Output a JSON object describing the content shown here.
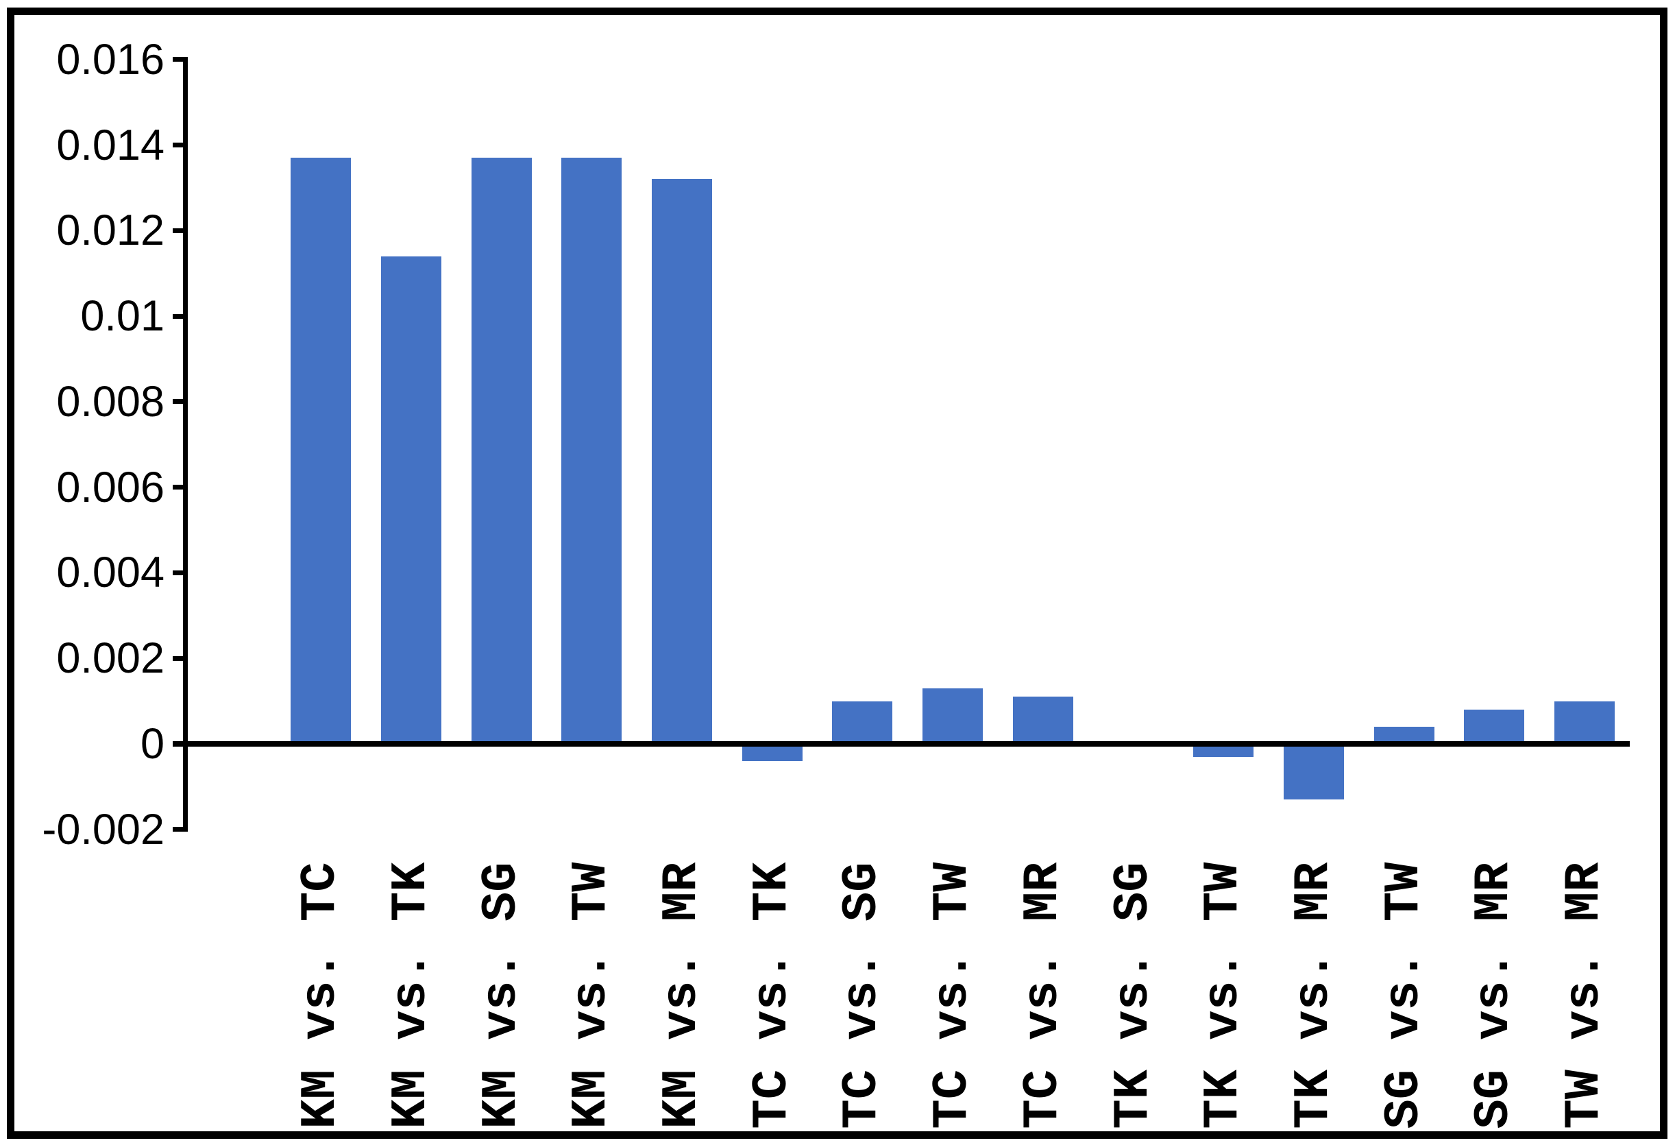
{
  "chart_data": {
    "type": "bar",
    "title": "",
    "xlabel": "",
    "ylabel": "",
    "categories": [
      "KM vs. TC",
      "KM vs. TK",
      "KM vs. SG",
      "KM vs. TW",
      "KM vs. MR",
      "TC vs. TK",
      "TC vs. SG",
      "TC vs. TW",
      "TC vs. MR",
      "TK vs. SG",
      "TK vs. TW",
      "TK vs. MR",
      "SG vs. TW",
      "SG vs. MR",
      "TW vs. MR"
    ],
    "values": [
      0.0137,
      0.0114,
      0.0137,
      0.0137,
      0.0132,
      -0.0004,
      0.001,
      0.0013,
      0.0011,
      0,
      -0.0003,
      -0.0013,
      0.0004,
      0.0008,
      0.001
    ],
    "ylim": [
      -0.002,
      0.016
    ],
    "ytick_step": 0.002,
    "ytick_labels": [
      "0.016",
      "0.014",
      "0.012",
      "0.01",
      "0.008",
      "0.006",
      "0.004",
      "0.002",
      "0",
      "-0.002"
    ],
    "legend_position": "none",
    "grid": false,
    "bar_color": "#4472C4",
    "axis_color": "#000000",
    "frame_color": "#000000",
    "background_color": "#FFFFFF"
  }
}
